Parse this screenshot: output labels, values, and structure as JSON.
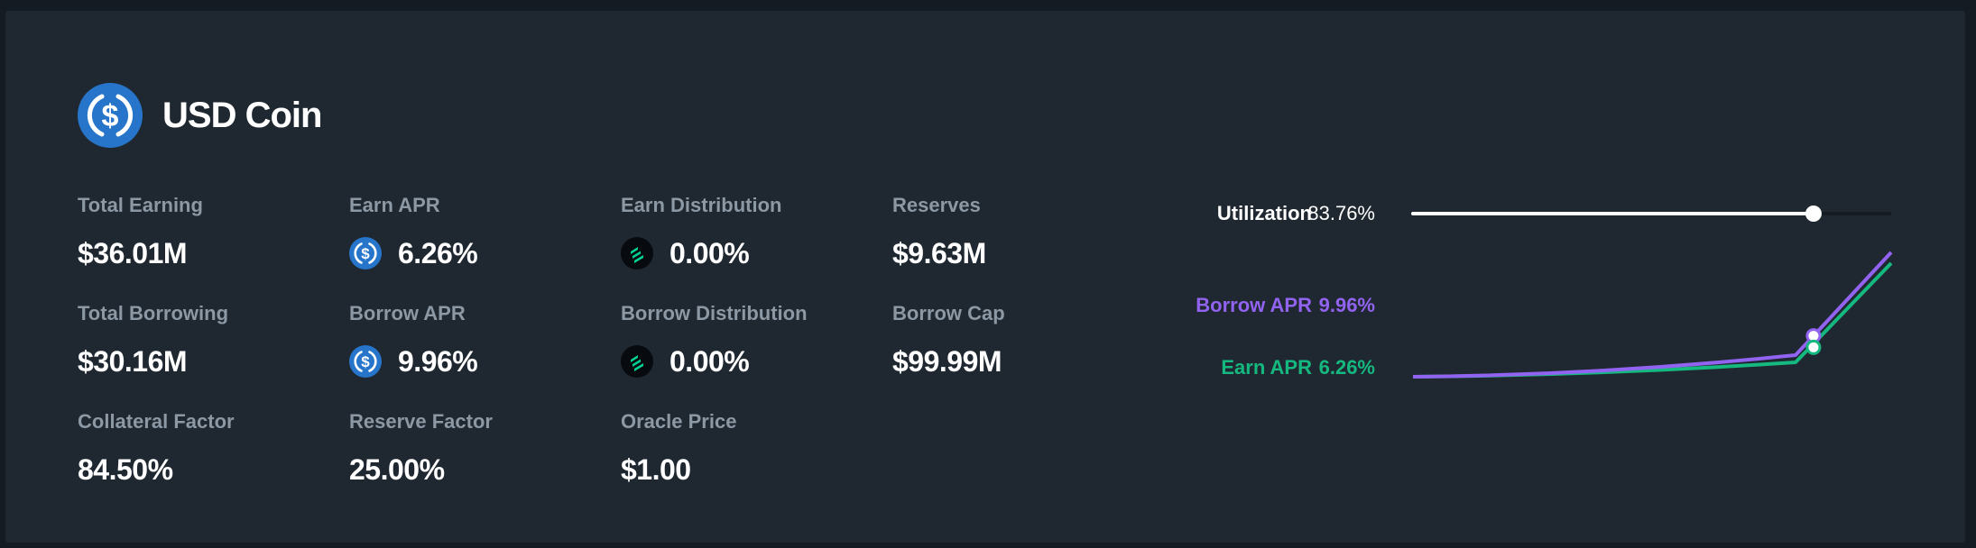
{
  "market": {
    "name": "USD Coin",
    "icon": "usdc-coin-icon",
    "brand_color": "#2775ca"
  },
  "stats": {
    "total_earning": {
      "label": "Total Earning",
      "value": "$36.01M"
    },
    "total_borrowing": {
      "label": "Total Borrowing",
      "value": "$30.16M"
    },
    "collateral_factor": {
      "label": "Collateral Factor",
      "value": "84.50%"
    },
    "earn_apr": {
      "label": "Earn APR",
      "value": "6.26%",
      "icon": "usdc-icon"
    },
    "borrow_apr": {
      "label": "Borrow APR",
      "value": "9.96%",
      "icon": "usdc-icon"
    },
    "reserve_factor": {
      "label": "Reserve Factor",
      "value": "25.00%"
    },
    "earn_distribution": {
      "label": "Earn Distribution",
      "value": "0.00%",
      "icon": "comp-token-icon"
    },
    "borrow_distribution": {
      "label": "Borrow Distribution",
      "value": "0.00%",
      "icon": "comp-token-icon"
    },
    "oracle_price": {
      "label": "Oracle Price",
      "value": "$1.00"
    },
    "reserves": {
      "label": "Reserves",
      "value": "$9.63M"
    },
    "borrow_cap": {
      "label": "Borrow Cap",
      "value": "$99.99M"
    }
  },
  "rate_model": {
    "utilization": {
      "label": "Utilization",
      "value": "83.76%",
      "fraction": 0.8376
    },
    "borrow_apr": {
      "label": "Borrow APR",
      "value": "9.96%"
    },
    "earn_apr": {
      "label": "Earn APR",
      "value": "6.26%"
    },
    "colors": {
      "borrow": "#9163f0",
      "earn": "#15b87f",
      "utilization": "#ffffff"
    }
  }
}
